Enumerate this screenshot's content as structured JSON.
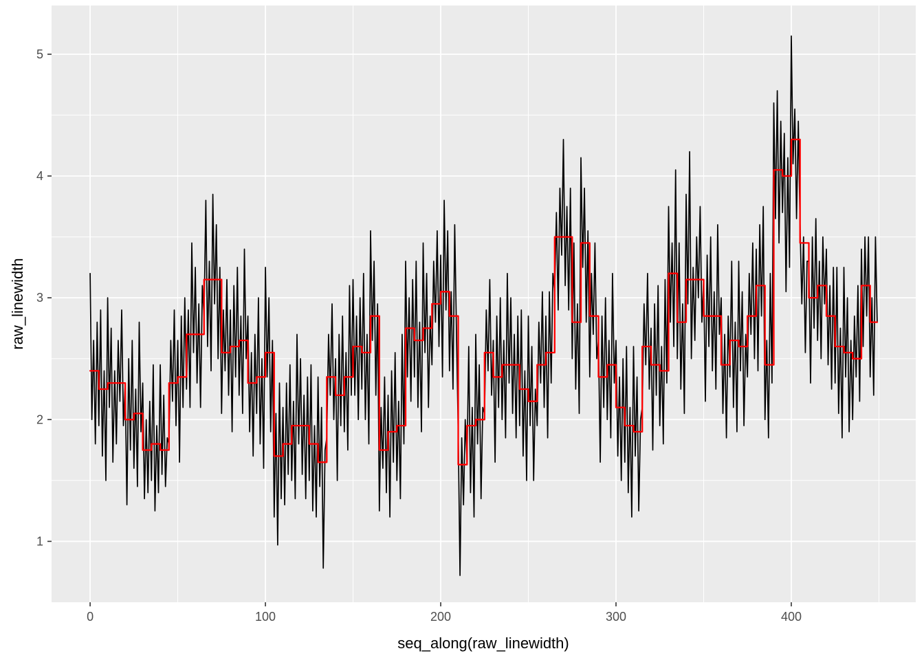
{
  "figure": {
    "background": "#FFFFFF",
    "panel_background": "#EBEBEB",
    "grid_major_color": "#FFFFFF",
    "grid_minor_color": "#FFFFFF",
    "axis_text_color": "#4D4D4D",
    "tick_color": "#333333"
  },
  "chart_data": {
    "type": "line",
    "title": "",
    "xlabel": "seq_along(raw_linewidth)",
    "ylabel": "raw_linewidth",
    "legend": "none",
    "grid": "on",
    "x_ticks": [
      0,
      100,
      200,
      300,
      400
    ],
    "y_ticks": [
      1,
      2,
      3,
      4,
      5
    ],
    "x_minor_ticks": [
      50,
      150,
      250,
      350,
      450
    ],
    "y_minor_ticks": [
      1.5,
      2.5,
      3.5,
      4.5
    ],
    "xlim": [
      -22,
      471
    ],
    "ylim": [
      0.5,
      5.4
    ],
    "series": [
      {
        "name": "raw_linewidth",
        "color": "#000000",
        "style": "line",
        "stroke_width": 1.7,
        "values": [
          3.2,
          2.0,
          2.65,
          1.8,
          2.8,
          1.95,
          2.9,
          1.7,
          2.4,
          1.5,
          3.0,
          2.1,
          2.75,
          1.65,
          2.4,
          1.8,
          2.65,
          2.15,
          2.9,
          1.95,
          2.3,
          1.3,
          2.5,
          1.75,
          2.65,
          1.6,
          2.25,
          1.45,
          2.8,
          1.9,
          2.3,
          1.35,
          2.0,
          1.4,
          2.15,
          1.5,
          2.45,
          1.25,
          1.95,
          1.4,
          2.45,
          1.55,
          2.2,
          1.45,
          1.85,
          1.8,
          2.65,
          2.15,
          2.9,
          1.95,
          2.65,
          1.65,
          2.85,
          2.1,
          3.0,
          2.25,
          2.9,
          2.1,
          3.45,
          2.55,
          3.25,
          2.3,
          2.95,
          2.1,
          3.1,
          2.85,
          3.8,
          2.6,
          3.3,
          2.4,
          3.85,
          2.95,
          3.6,
          2.5,
          3.25,
          2.05,
          2.9,
          2.4,
          3.15,
          2.2,
          2.9,
          1.9,
          3.1,
          2.35,
          3.25,
          2.2,
          2.85,
          2.05,
          3.4,
          2.5,
          2.85,
          1.9,
          2.55,
          1.7,
          2.7,
          2.05,
          3.0,
          1.8,
          2.5,
          1.6,
          3.25,
          2.35,
          3.0,
          1.9,
          2.65,
          1.2,
          2.05,
          0.97,
          2.3,
          1.35,
          2.1,
          1.3,
          2.3,
          1.55,
          2.45,
          1.5,
          2.15,
          1.35,
          2.7,
          1.8,
          2.5,
          1.55,
          2.2,
          1.35,
          2.35,
          1.5,
          2.45,
          1.25,
          1.95,
          1.2,
          2.35,
          1.45,
          2.1,
          0.78,
          1.75,
          1.85,
          2.7,
          2.2,
          2.95,
          2.0,
          2.5,
          1.5,
          2.7,
          1.95,
          2.85,
          1.9,
          2.55,
          1.75,
          3.1,
          2.2,
          3.15,
          2.2,
          2.85,
          2.0,
          3.0,
          2.25,
          3.2,
          2.0,
          2.7,
          1.8,
          3.55,
          2.65,
          3.3,
          2.2,
          2.95,
          1.25,
          2.1,
          1.6,
          2.35,
          1.4,
          2.2,
          1.2,
          2.4,
          1.65,
          2.55,
          1.5,
          2.15,
          1.35,
          2.7,
          1.8,
          3.3,
          2.35,
          3.0,
          2.15,
          3.15,
          2.35,
          3.3,
          2.1,
          2.8,
          1.9,
          3.45,
          2.55,
          3.2,
          2.1,
          2.85,
          2.45,
          3.3,
          2.8,
          3.55,
          2.6,
          3.35,
          2.35,
          3.8,
          2.9,
          3.55,
          2.4,
          3.05,
          2.25,
          3.6,
          2.7,
          1.9,
          0.72,
          1.85,
          1.3,
          2.0,
          1.65,
          2.6,
          1.4,
          2.1,
          1.2,
          2.7,
          1.8,
          2.45,
          1.35,
          2.1,
          2.05,
          2.9,
          2.4,
          3.15,
          2.2,
          2.65,
          1.65,
          2.85,
          2.1,
          3.0,
          2.0,
          2.65,
          1.85,
          3.2,
          2.3,
          3.0,
          2.05,
          2.7,
          1.85,
          2.85,
          1.95,
          2.9,
          1.7,
          2.4,
          1.5,
          2.85,
          1.95,
          2.6,
          1.5,
          2.25,
          1.95,
          2.8,
          2.3,
          3.05,
          2.1,
          2.85,
          1.85,
          3.05,
          2.3,
          3.2,
          3.05,
          3.7,
          2.9,
          3.9,
          3.35,
          4.3,
          3.1,
          3.75,
          2.9,
          3.9,
          2.5,
          3.45,
          2.25,
          2.95,
          2.05,
          4.15,
          3.25,
          3.9,
          2.8,
          3.55,
          2.35,
          3.2,
          2.7,
          3.45,
          2.5,
          2.65,
          1.65,
          2.85,
          2.1,
          3.0,
          2.0,
          2.65,
          1.85,
          3.2,
          2.3,
          2.65,
          1.7,
          2.35,
          1.5,
          2.5,
          1.65,
          2.6,
          1.4,
          2.1,
          1.2,
          2.6,
          1.7,
          2.35,
          1.25,
          2.0,
          2.1,
          2.95,
          2.45,
          3.2,
          2.25,
          2.75,
          1.75,
          2.95,
          2.2,
          3.1,
          1.95,
          2.6,
          1.8,
          3.15,
          2.3,
          3.75,
          2.8,
          3.45,
          2.6,
          4.05,
          2.5,
          3.45,
          2.25,
          2.95,
          2.05,
          3.85,
          2.95,
          4.2,
          2.5,
          3.25,
          2.65,
          3.5,
          3.0,
          3.75,
          2.8,
          3.15,
          2.15,
          3.35,
          2.6,
          3.5,
          2.4,
          3.05,
          2.25,
          3.6,
          2.7,
          3.0,
          2.05,
          2.7,
          1.85,
          2.85,
          2.35,
          3.3,
          2.1,
          2.8,
          1.9,
          3.3,
          2.4,
          3.05,
          1.95,
          2.7,
          2.35,
          3.2,
          2.7,
          3.45,
          2.5,
          3.4,
          2.4,
          3.6,
          2.85,
          3.75,
          2.0,
          2.65,
          1.85,
          3.2,
          2.3,
          4.6,
          3.65,
          4.7,
          3.45,
          4.45,
          3.7,
          4.35,
          3.05,
          4.15,
          3.25,
          5.15,
          4.1,
          4.55,
          3.65,
          4.45,
          3.6,
          2.95,
          3.5,
          2.55,
          3.3,
          3.3,
          2.3,
          3.5,
          2.75,
          3.65,
          2.65,
          3.3,
          2.5,
          3.5,
          2.95,
          3.4,
          2.45,
          3.1,
          2.25,
          3.25,
          2.3,
          3.25,
          2.05,
          2.75,
          1.85,
          3.25,
          2.35,
          3.0,
          1.9,
          2.65,
          2.0,
          2.85,
          2.35,
          3.1,
          2.15,
          3.4,
          2.6,
          3.5,
          2.85,
          3.5,
          2.35,
          3.0,
          2.2,
          3.5,
          2.8
        ]
      },
      {
        "name": "running_median_smoother",
        "color": "#FF0000",
        "style": "step",
        "stroke_width": 2.3,
        "window": 5,
        "values": [
          2.4,
          2.25,
          2.3,
          2.3,
          2.0,
          2.05,
          1.75,
          1.8,
          1.75,
          2.3,
          2.35,
          2.7,
          2.7,
          3.15,
          3.15,
          2.55,
          2.6,
          2.65,
          2.3,
          2.35,
          2.55,
          1.7,
          1.8,
          1.95,
          1.95,
          1.8,
          1.65,
          2.35,
          2.2,
          2.35,
          2.6,
          2.55,
          2.85,
          1.75,
          1.9,
          1.95,
          2.75,
          2.65,
          2.75,
          2.95,
          3.05,
          2.85,
          1.63,
          1.95,
          2.0,
          2.55,
          2.35,
          2.45,
          2.45,
          2.25,
          2.15,
          2.45,
          2.55,
          3.5,
          3.5,
          2.8,
          3.45,
          2.85,
          2.35,
          2.45,
          2.1,
          1.95,
          1.9,
          2.6,
          2.45,
          2.4,
          3.2,
          2.8,
          3.15,
          3.15,
          2.85,
          2.85,
          2.45,
          2.65,
          2.6,
          2.85,
          3.1,
          2.45,
          4.05,
          4.0,
          4.3,
          3.45,
          3.0,
          3.1,
          2.85,
          2.6,
          2.55,
          2.5,
          3.1,
          2.8
        ]
      }
    ]
  }
}
